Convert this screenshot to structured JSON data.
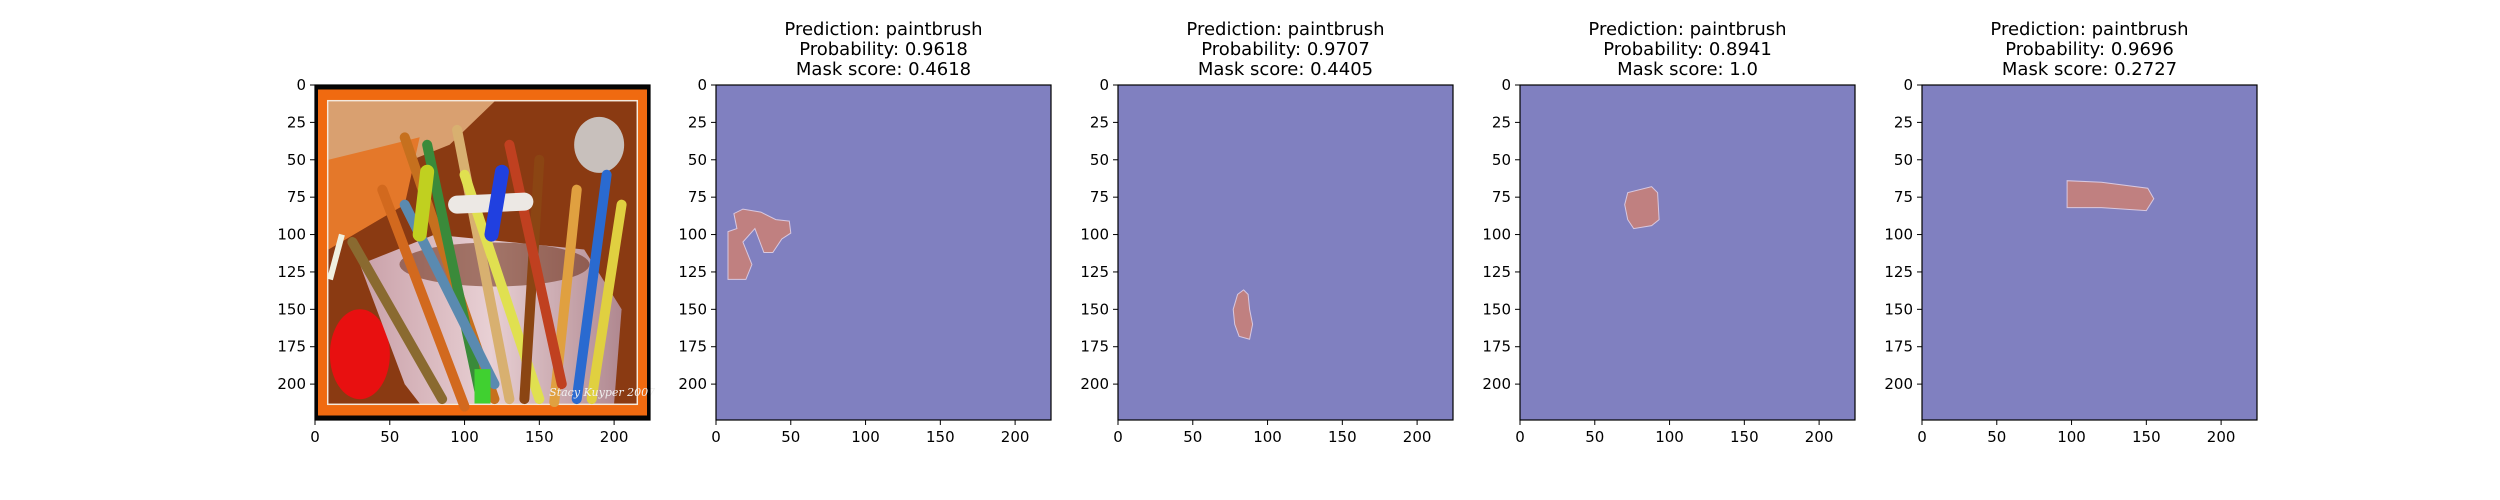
{
  "chart_data": [
    {
      "type": "image",
      "title": [],
      "xlim": [
        0,
        224
      ],
      "ylim": [
        224,
        0
      ],
      "xticks": [
        0,
        50,
        100,
        150,
        200
      ],
      "yticks": [
        0,
        25,
        50,
        75,
        100,
        125,
        150,
        175,
        200
      ],
      "image": "photo of paintbrushes in a cup, orange frame",
      "image_text": "Stacy Kuyper 2007"
    },
    {
      "type": "heatmap",
      "title": [
        "Prediction: paintbrush",
        "Probability: 0.9618",
        "Mask score: 0.4618"
      ],
      "prediction": "paintbrush",
      "probability": 0.9618,
      "mask_score": 0.4618,
      "xlim": [
        0,
        224
      ],
      "ylim": [
        224,
        0
      ],
      "xticks": [
        0,
        50,
        100,
        150,
        200
      ],
      "yticks": [
        0,
        25,
        50,
        75,
        100,
        125,
        150,
        175,
        200
      ],
      "background_color": "#8080c0",
      "mask_color": "#c08080",
      "mask_polygon": [
        [
          8,
          98
        ],
        [
          8,
          130
        ],
        [
          20,
          130
        ],
        [
          24,
          120
        ],
        [
          18,
          105
        ],
        [
          26,
          96
        ],
        [
          32,
          112
        ],
        [
          38,
          112
        ],
        [
          44,
          103
        ],
        [
          50,
          99
        ],
        [
          49,
          91
        ],
        [
          40,
          90
        ],
        [
          30,
          85
        ],
        [
          18,
          83
        ],
        [
          12,
          86
        ],
        [
          14,
          96
        ]
      ]
    },
    {
      "type": "heatmap",
      "title": [
        "Prediction: paintbrush",
        "Probability: 0.9707",
        "Mask score: 0.4405"
      ],
      "prediction": "paintbrush",
      "probability": 0.9707,
      "mask_score": 0.4405,
      "xlim": [
        0,
        224
      ],
      "ylim": [
        224,
        0
      ],
      "xticks": [
        0,
        50,
        100,
        150,
        200
      ],
      "yticks": [
        0,
        25,
        50,
        75,
        100,
        125,
        150,
        175,
        200
      ],
      "background_color": "#8080c0",
      "mask_color": "#c08080",
      "mask_polygon": [
        [
          80,
          140
        ],
        [
          77,
          150
        ],
        [
          78,
          160
        ],
        [
          81,
          168
        ],
        [
          88,
          170
        ],
        [
          90,
          160
        ],
        [
          88,
          150
        ],
        [
          87,
          140
        ],
        [
          84,
          137
        ]
      ]
    },
    {
      "type": "heatmap",
      "title": [
        "Prediction: paintbrush",
        "Probability: 0.8941",
        "Mask score: 1.0"
      ],
      "prediction": "paintbrush",
      "probability": 0.8941,
      "mask_score": 1.0,
      "xlim": [
        0,
        224
      ],
      "ylim": [
        224,
        0
      ],
      "xticks": [
        0,
        50,
        100,
        150,
        200
      ],
      "yticks": [
        0,
        25,
        50,
        75,
        100,
        125,
        150,
        175,
        200
      ],
      "background_color": "#8080c0",
      "mask_color": "#c08080",
      "mask_polygon": [
        [
          72,
          72
        ],
        [
          70,
          80
        ],
        [
          72,
          90
        ],
        [
          76,
          96
        ],
        [
          88,
          94
        ],
        [
          93,
          90
        ],
        [
          92,
          72
        ],
        [
          88,
          68
        ]
      ]
    },
    {
      "type": "heatmap",
      "title": [
        "Prediction: paintbrush",
        "Probability: 0.9696",
        "Mask score: 0.2727"
      ],
      "prediction": "paintbrush",
      "probability": 0.9696,
      "mask_score": 0.2727,
      "xlim": [
        0,
        224
      ],
      "ylim": [
        224,
        0
      ],
      "xticks": [
        0,
        50,
        100,
        150,
        200
      ],
      "yticks": [
        0,
        25,
        50,
        75,
        100,
        125,
        150,
        175,
        200
      ],
      "background_color": "#8080c0",
      "mask_color": "#c08080",
      "mask_polygon": [
        [
          97,
          64
        ],
        [
          97,
          82
        ],
        [
          120,
          82
        ],
        [
          150,
          84
        ],
        [
          155,
          76
        ],
        [
          151,
          69
        ],
        [
          120,
          65
        ]
      ]
    }
  ]
}
